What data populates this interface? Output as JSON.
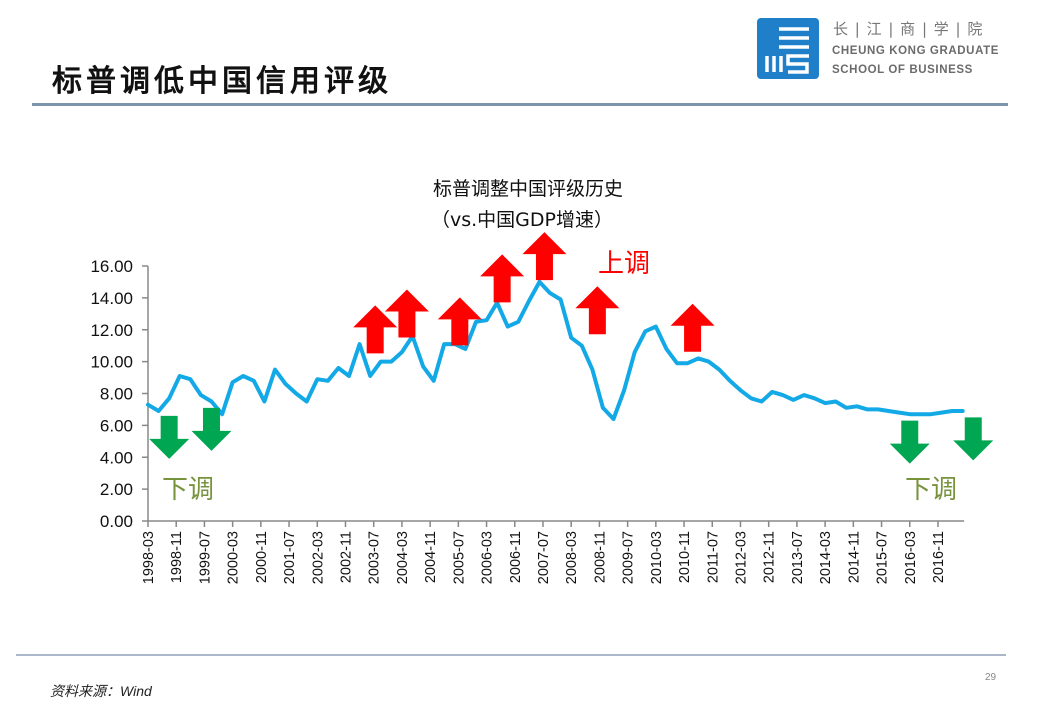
{
  "slide": {
    "title": "标普调低中国信用评级",
    "source": "资料来源：Wind",
    "page_number": "29"
  },
  "logo": {
    "name_cn": "长 | 江 | 商 | 学 | 院",
    "name_en_line1": "CHEUNG KONG GRADUATE",
    "name_en_line2": "SCHOOL OF BUSINESS",
    "color": "#1f7fc8"
  },
  "chart_data": {
    "type": "line",
    "title": "标普调整中国评级历史",
    "subtitle": "（vs.中国GDP增速）",
    "xlabel": "",
    "ylabel": "",
    "ylim": [
      0,
      16
    ],
    "yticks": [
      "0.00",
      "2.00",
      "4.00",
      "6.00",
      "8.00",
      "10.00",
      "12.00",
      "14.00",
      "16.00"
    ],
    "xtick_labels": [
      "1998-03",
      "1998-11",
      "1999-07",
      "2000-03",
      "2000-11",
      "2001-07",
      "2002-03",
      "2002-11",
      "2003-07",
      "2004-03",
      "2004-11",
      "2005-07",
      "2006-03",
      "2006-11",
      "2007-07",
      "2008-03",
      "2008-11",
      "2009-07",
      "2010-03",
      "2010-11",
      "2011-07",
      "2012-03",
      "2012-11",
      "2013-07",
      "2014-03",
      "2014-11",
      "2015-07",
      "2016-03",
      "2016-11"
    ],
    "x_start": "1998-03",
    "x_step_months": 3,
    "grid": false,
    "series": [
      {
        "name": "中国GDP增速",
        "color": "#13a9e6",
        "values": [
          7.3,
          6.9,
          7.7,
          9.1,
          8.9,
          7.9,
          7.5,
          6.7,
          8.7,
          9.1,
          8.8,
          7.5,
          9.5,
          8.6,
          8.0,
          7.5,
          8.9,
          8.8,
          9.6,
          9.1,
          11.1,
          9.1,
          10.0,
          10.0,
          10.6,
          11.6,
          9.7,
          8.8,
          11.1,
          11.1,
          10.8,
          12.5,
          12.6,
          13.7,
          12.2,
          12.5,
          13.8,
          15.0,
          14.3,
          13.9,
          11.5,
          11.0,
          9.5,
          7.1,
          6.4,
          8.2,
          10.6,
          11.9,
          12.2,
          10.8,
          9.9,
          9.9,
          10.2,
          10.0,
          9.5,
          8.8,
          8.2,
          7.7,
          7.5,
          8.1,
          7.9,
          7.6,
          7.9,
          7.7,
          7.4,
          7.5,
          7.1,
          7.2,
          7.0,
          7.0,
          6.9,
          6.8,
          6.7,
          6.7,
          6.7,
          6.8,
          6.9,
          6.9
        ]
      }
    ],
    "annotations": {
      "upgrade_label": "上调",
      "downgrade_label_left": "下调",
      "downgrade_label_right": "下调",
      "upgrade_color": "#ff0000",
      "downgrade_color": "#00a651",
      "downgrade_text_color": "#77933c",
      "upgrades": [
        {
          "x_index": 21,
          "value": 12.4
        },
        {
          "x_index": 24,
          "value": 13.4
        },
        {
          "x_index": 29,
          "value": 12.9
        },
        {
          "x_index": 33,
          "value": 15.6
        },
        {
          "x_index": 37,
          "value": 17.0
        },
        {
          "x_index": 42,
          "value": 13.6
        },
        {
          "x_index": 51,
          "value": 12.5
        }
      ],
      "downgrades": [
        {
          "x_index": 2,
          "value": 6.6
        },
        {
          "x_index": 6,
          "value": 7.1
        },
        {
          "x_index": 72,
          "value": 6.3
        },
        {
          "x_index": 78,
          "value": 6.5
        }
      ]
    }
  }
}
